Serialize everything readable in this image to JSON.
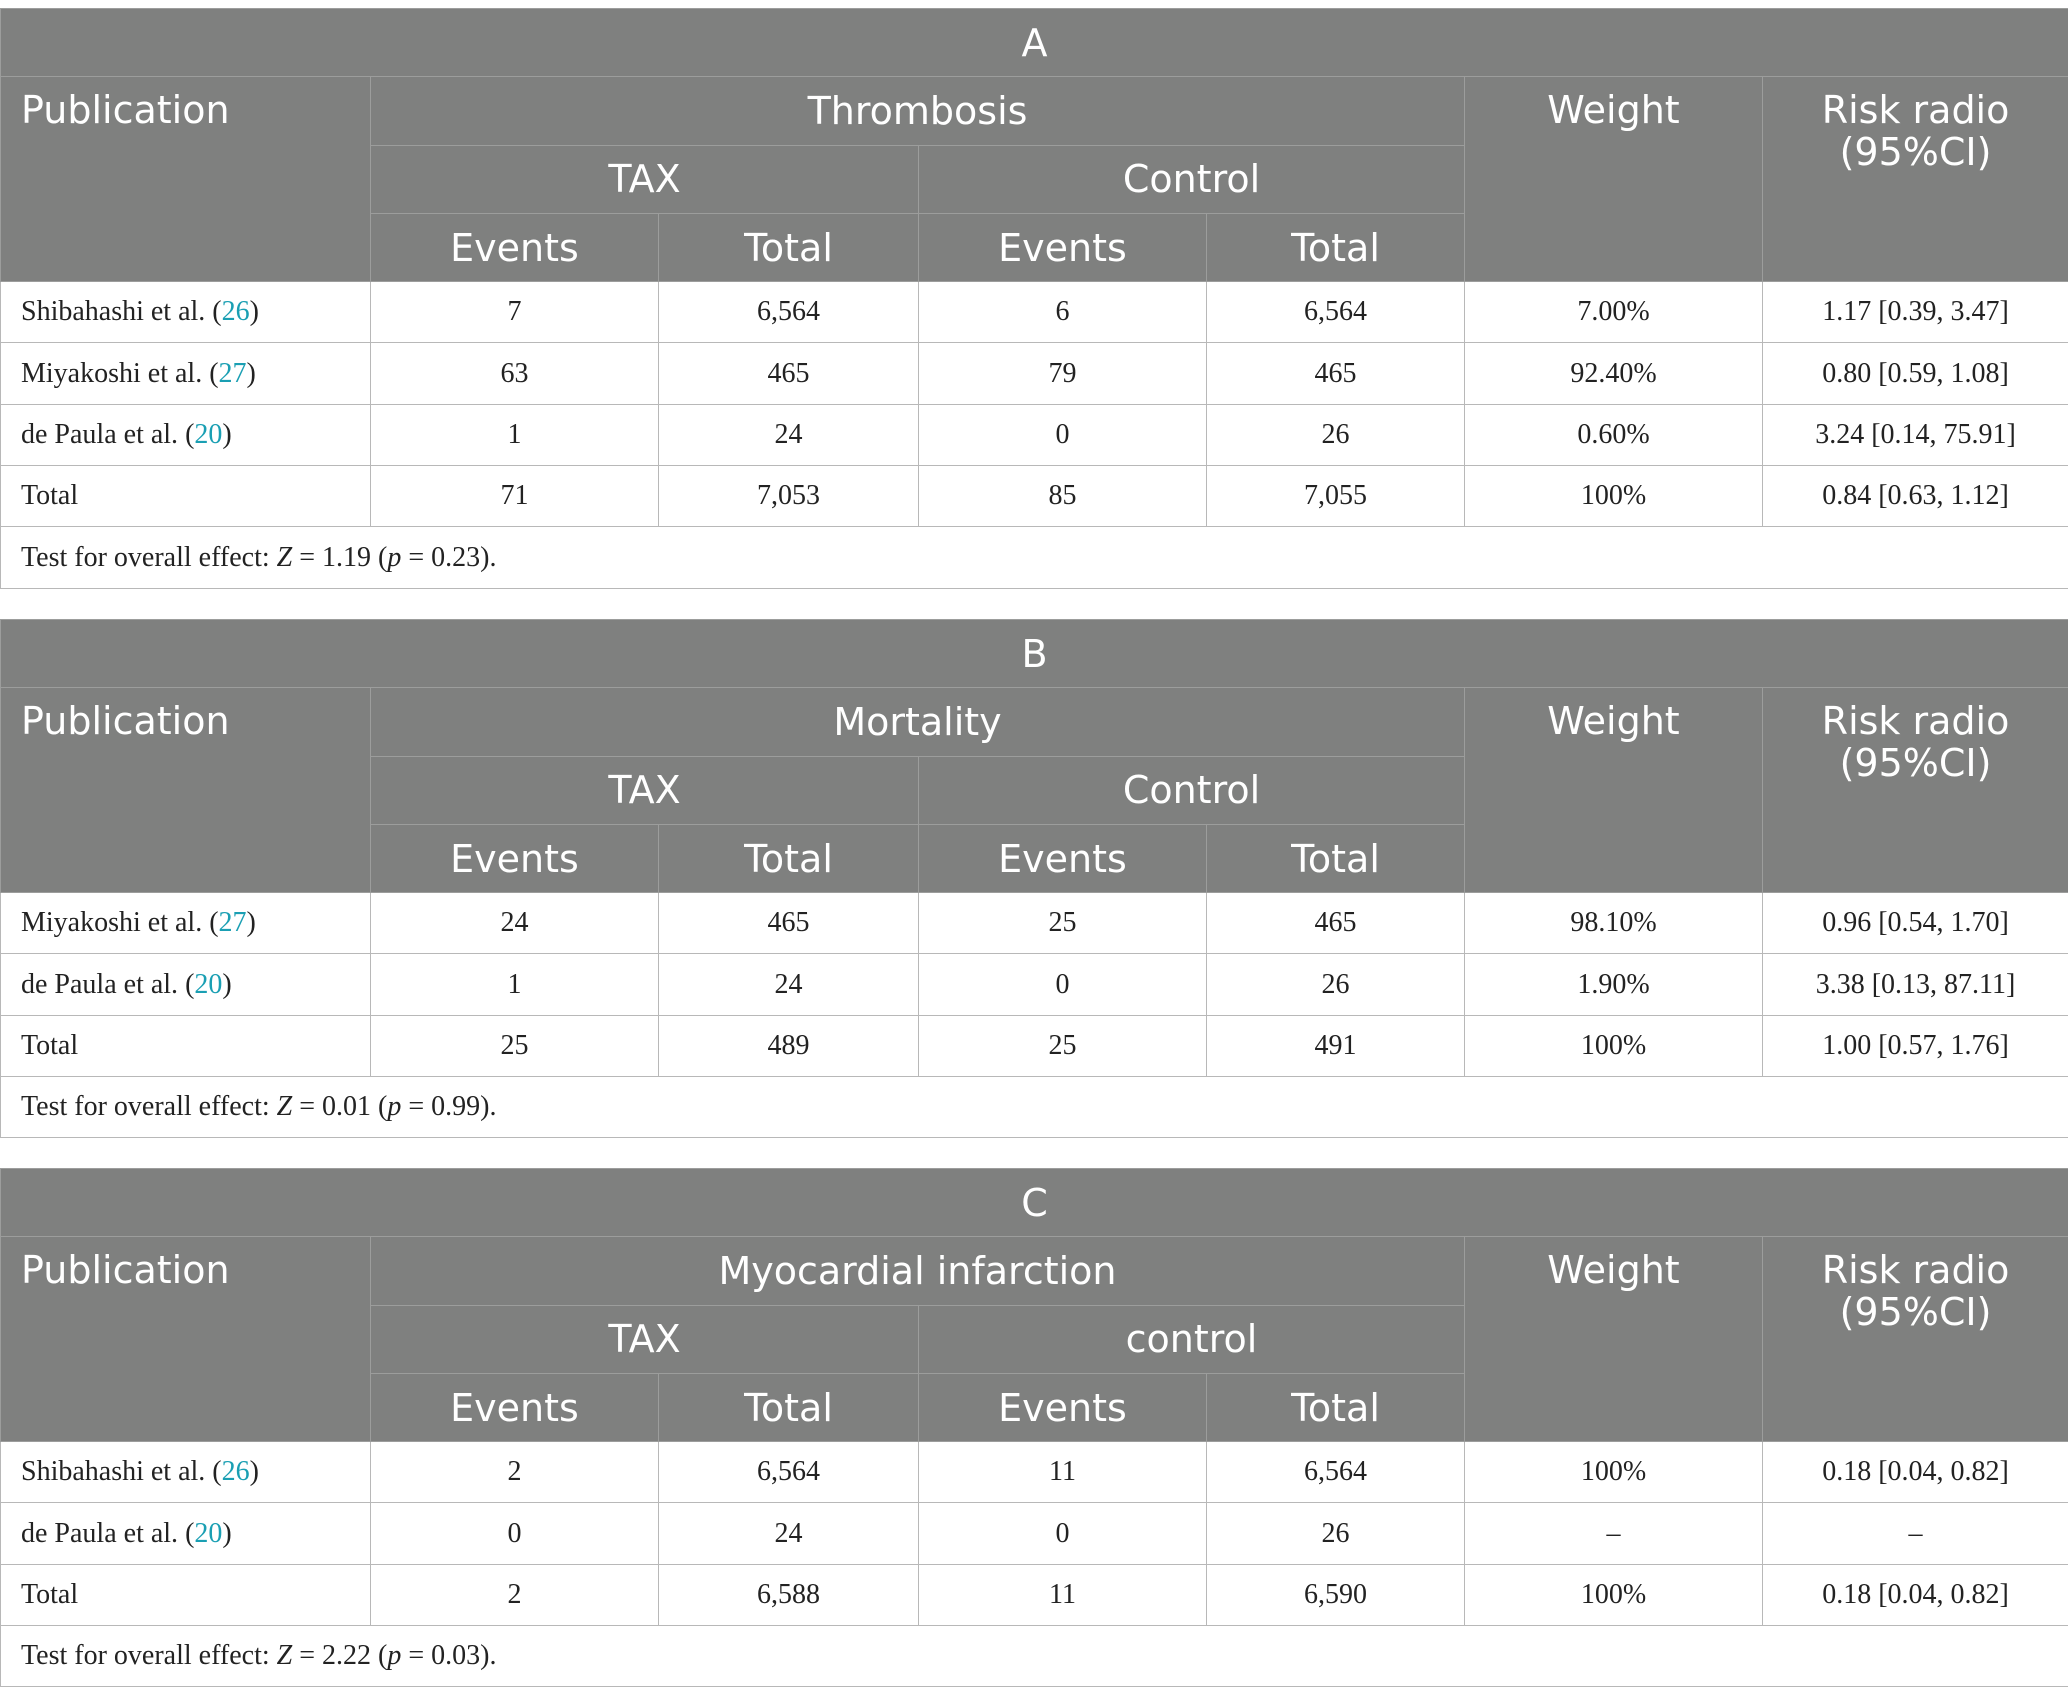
{
  "tables": [
    {
      "label": "A",
      "outcome": "Thrombosis",
      "header": {
        "publication": "Publication",
        "group1": "TAX",
        "group2": "Control",
        "events": "Events",
        "total": "Total",
        "weight": "Weight",
        "rr": "Risk radio (95%CI)"
      },
      "rows": [
        {
          "author": "Shibahashi et al.",
          "ref": "26",
          "tax_events": "7",
          "tax_total": "6,564",
          "ctl_events": "6",
          "ctl_total": "6,564",
          "weight": "7.00%",
          "rr": "1.17 [0.39, 3.47]"
        },
        {
          "author": "Miyakoshi et al.",
          "ref": "27",
          "tax_events": "63",
          "tax_total": "465",
          "ctl_events": "79",
          "ctl_total": "465",
          "weight": "92.40%",
          "rr": "0.80 [0.59, 1.08]"
        },
        {
          "author": "de Paula et al.",
          "ref": "20",
          "tax_events": "1",
          "tax_total": "24",
          "ctl_events": "0",
          "ctl_total": "26",
          "weight": "0.60%",
          "rr": "3.24 [0.14, 75.91]"
        },
        {
          "author": "Total",
          "ref": "",
          "tax_events": "71",
          "tax_total": "7,053",
          "ctl_events": "85",
          "ctl_total": "7,055",
          "weight": "100%",
          "rr": "0.84 [0.63, 1.12]"
        }
      ],
      "test": {
        "prefix": "Test for overall effect: ",
        "z_label": "Z",
        "z_value": " = 1.19 (",
        "p_label": "p",
        "p_value": " = 0.23)."
      }
    },
    {
      "label": "B",
      "outcome": "Mortality",
      "header": {
        "publication": "Publication",
        "group1": "TAX",
        "group2": "Control",
        "events": "Events",
        "total": "Total",
        "weight": "Weight",
        "rr": "Risk radio (95%CI)"
      },
      "rows": [
        {
          "author": "Miyakoshi et al.",
          "ref": "27",
          "tax_events": "24",
          "tax_total": "465",
          "ctl_events": "25",
          "ctl_total": "465",
          "weight": "98.10%",
          "rr": "0.96 [0.54, 1.70]"
        },
        {
          "author": "de Paula et al.",
          "ref": "20",
          "tax_events": "1",
          "tax_total": "24",
          "ctl_events": "0",
          "ctl_total": "26",
          "weight": "1.90%",
          "rr": "3.38 [0.13, 87.11]"
        },
        {
          "author": "Total",
          "ref": "",
          "tax_events": "25",
          "tax_total": "489",
          "ctl_events": "25",
          "ctl_total": "491",
          "weight": "100%",
          "rr": "1.00 [0.57, 1.76]"
        }
      ],
      "test": {
        "prefix": "Test for overall effect: ",
        "z_label": "Z",
        "z_value": " = 0.01 (",
        "p_label": "p",
        "p_value": " = 0.99)."
      }
    },
    {
      "label": "C",
      "outcome": "Myocardial infarction",
      "header": {
        "publication": "Publication",
        "group1": "TAX",
        "group2": "control",
        "events": "Events",
        "total": "Total",
        "weight": "Weight",
        "rr": "Risk radio (95%CI)"
      },
      "rows": [
        {
          "author": "Shibahashi et al.",
          "ref": "26",
          "tax_events": "2",
          "tax_total": "6,564",
          "ctl_events": "11",
          "ctl_total": "6,564",
          "weight": "100%",
          "rr": "0.18 [0.04, 0.82]"
        },
        {
          "author": "de Paula et al.",
          "ref": "20",
          "tax_events": "0",
          "tax_total": "24",
          "ctl_events": "0",
          "ctl_total": "26",
          "weight": "–",
          "rr": "–"
        },
        {
          "author": "Total",
          "ref": "",
          "tax_events": "2",
          "tax_total": "6,588",
          "ctl_events": "11",
          "ctl_total": "6,590",
          "weight": "100%",
          "rr": "0.18 [0.04, 0.82]"
        }
      ],
      "test": {
        "prefix": "Test for overall effect: ",
        "z_label": "Z",
        "z_value": " = 2.22 (",
        "p_label": "p",
        "p_value": " = 0.03)."
      }
    }
  ]
}
